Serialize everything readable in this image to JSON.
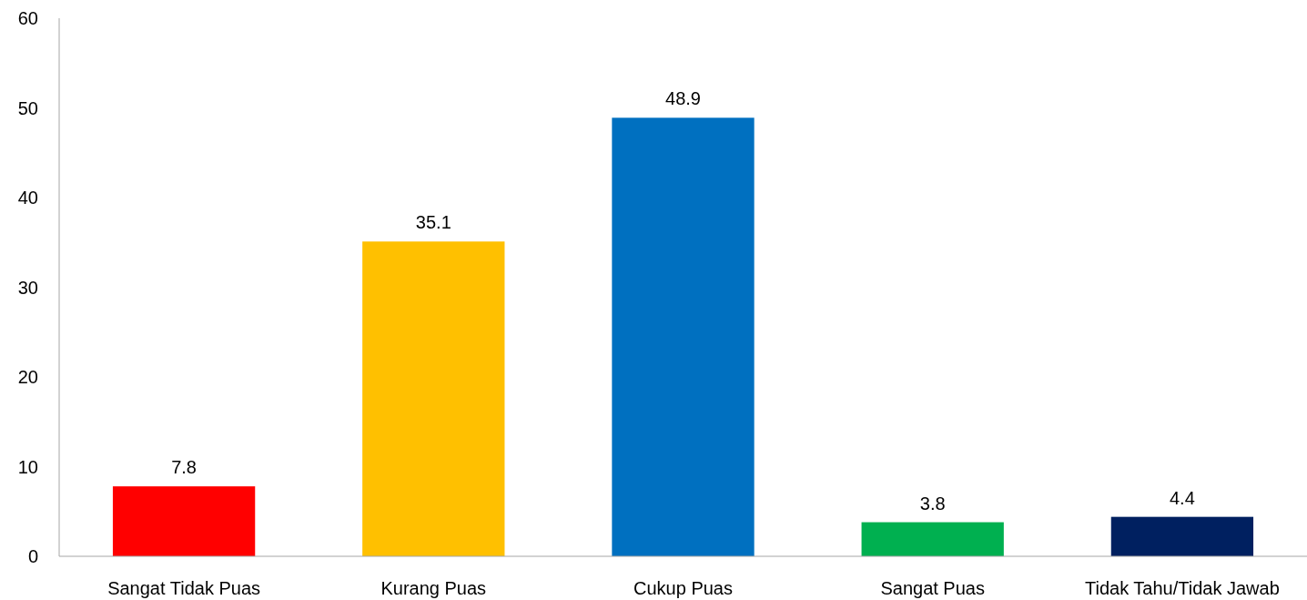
{
  "chart_data": {
    "type": "bar",
    "categories": [
      "Sangat Tidak Puas",
      "Kurang Puas",
      "Cukup Puas",
      "Sangat Puas",
      "Tidak Tahu/Tidak Jawab"
    ],
    "values": [
      7.8,
      35.1,
      48.9,
      3.8,
      4.4
    ],
    "colors": [
      "#ff0000",
      "#ffc000",
      "#0070c0",
      "#00b050",
      "#002060"
    ],
    "ylim": [
      0,
      60
    ],
    "yticks": [
      0,
      10,
      20,
      30,
      40,
      50,
      60
    ],
    "grid": false,
    "data_labels": true
  }
}
